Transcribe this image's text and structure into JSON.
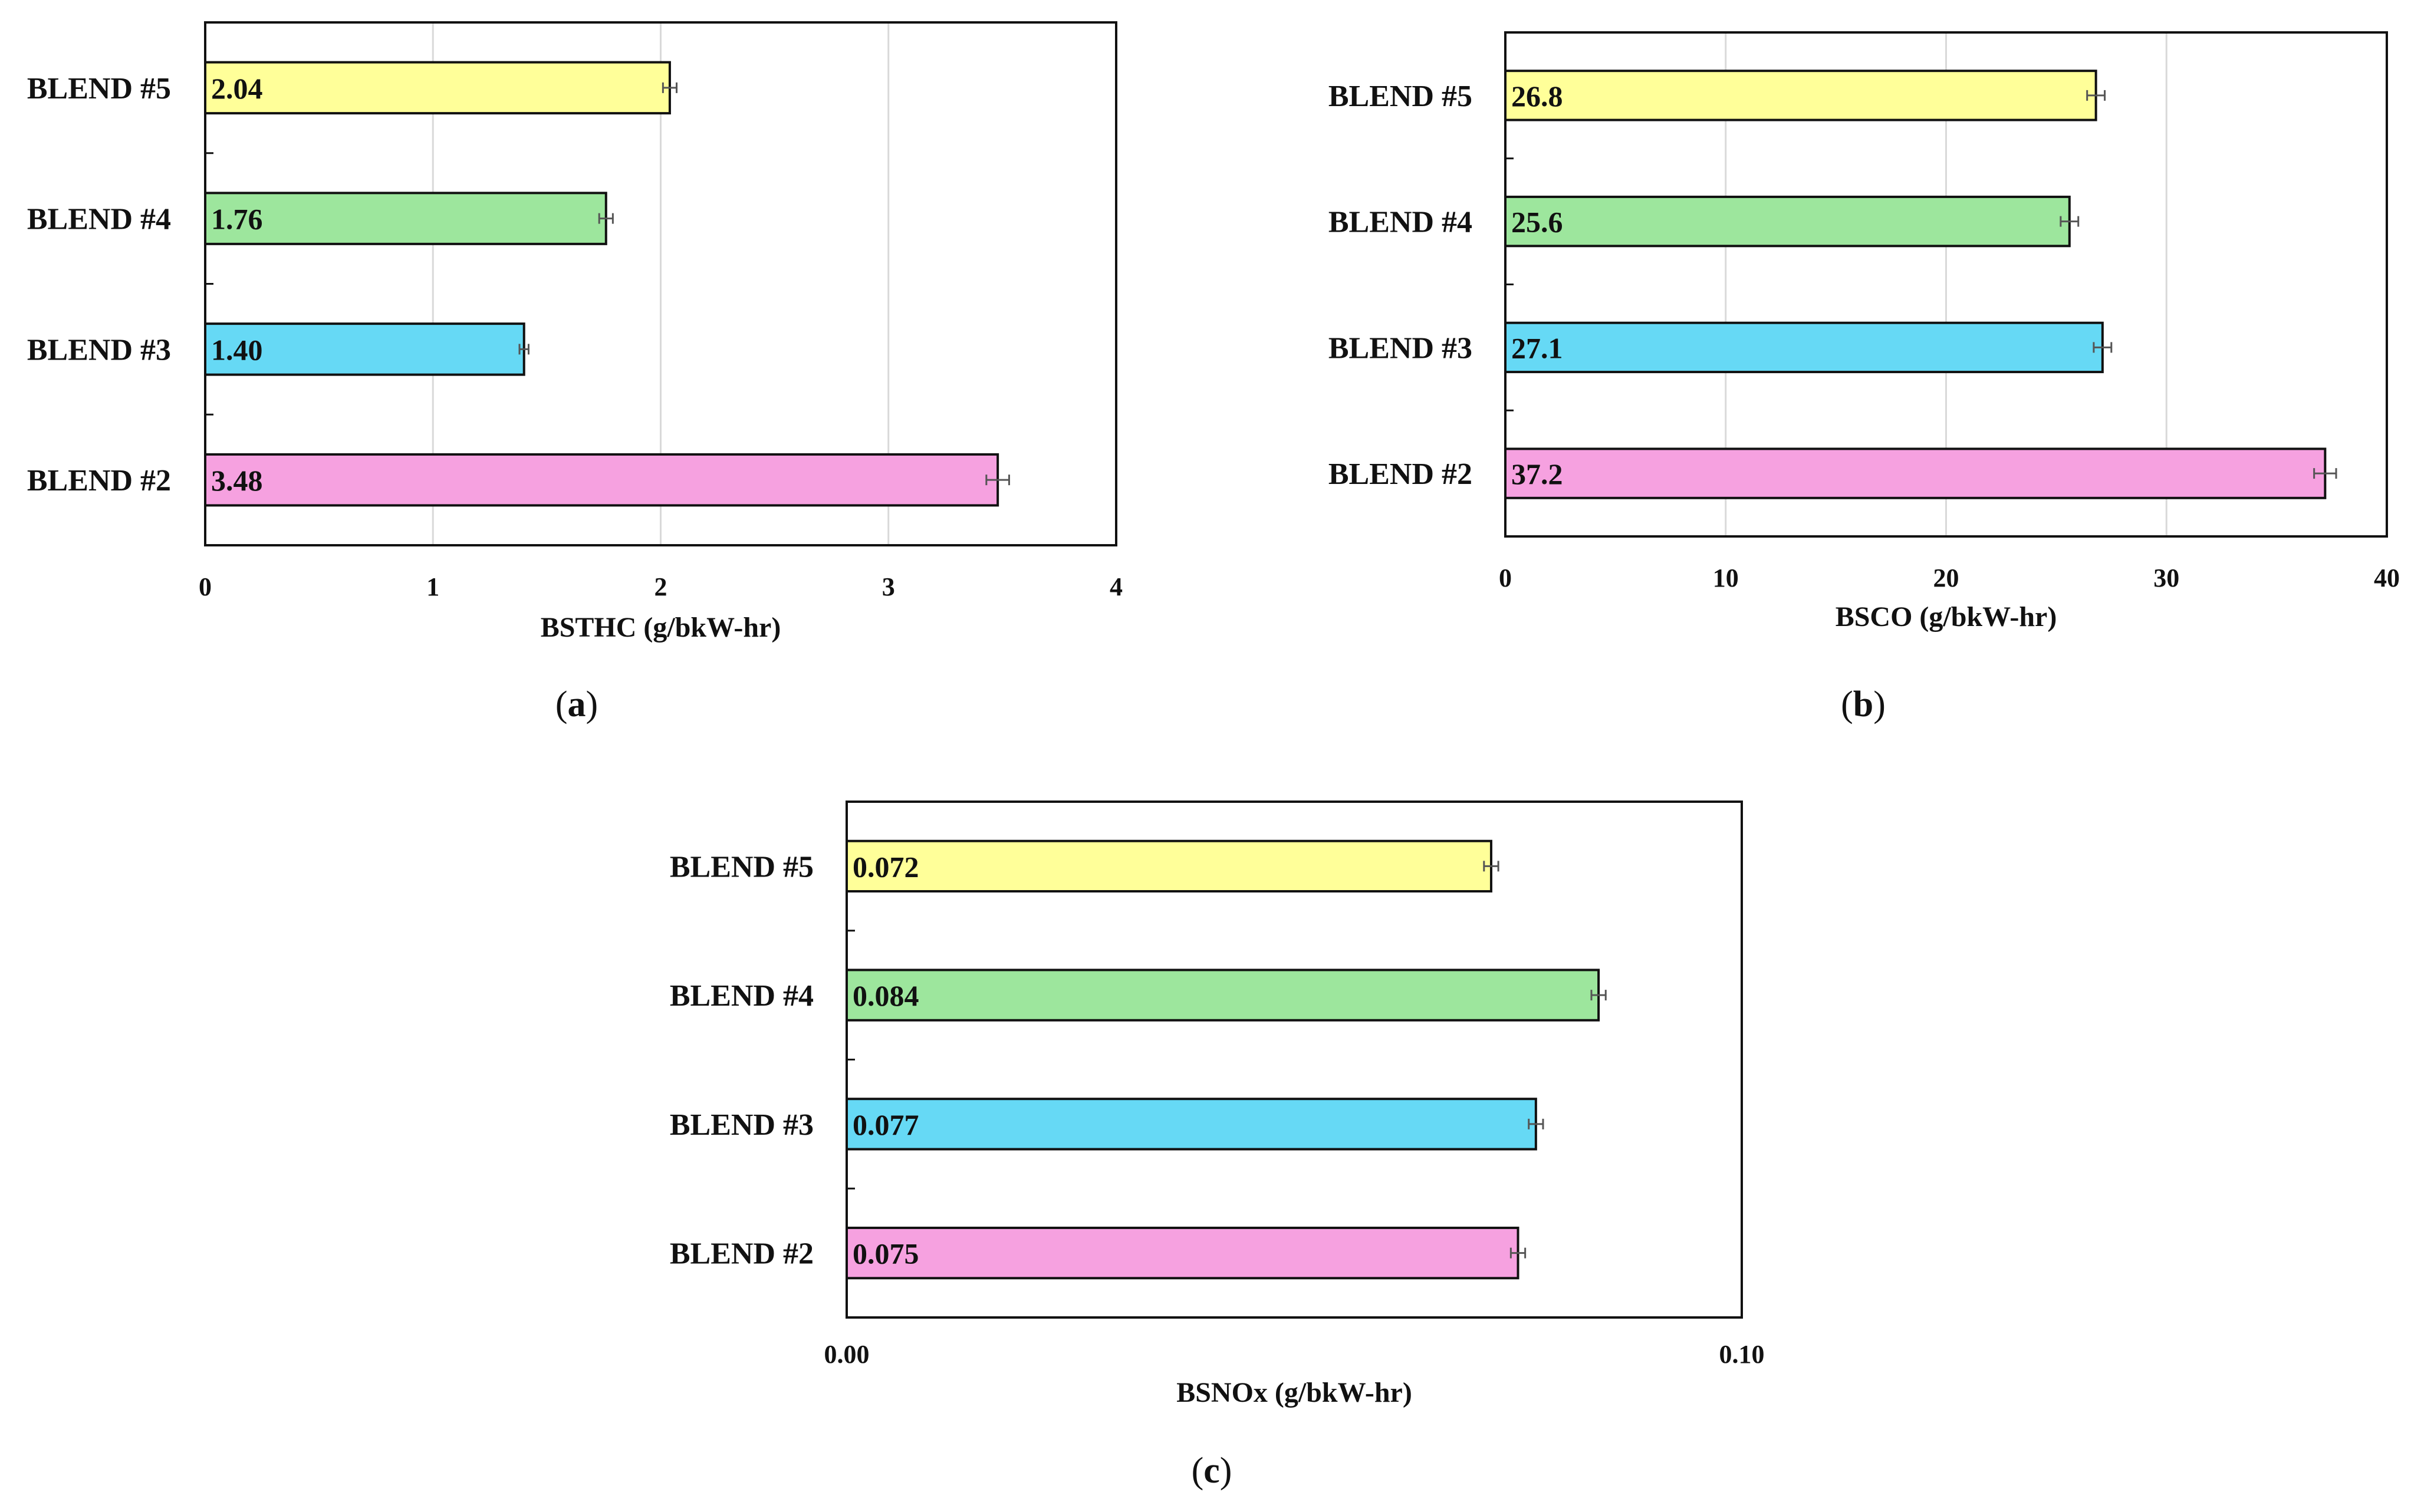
{
  "chart_data": [
    {
      "type": "bar",
      "orientation": "horizontal",
      "panel": "a",
      "categories": [
        "BLEND #5",
        "BLEND #4",
        "BLEND #3",
        "BLEND #2"
      ],
      "values": [
        2.04,
        1.76,
        1.4,
        3.48
      ],
      "value_labels": [
        "2.04",
        "1.76",
        "1.40",
        "3.48"
      ],
      "error": [
        0.03,
        0.03,
        0.02,
        0.05
      ],
      "colors": [
        "#ffff99",
        "#9de69d",
        "#66d9f5",
        "#f6a1e0"
      ],
      "xlim": [
        0,
        4
      ],
      "xticks": [
        0,
        1,
        2,
        3,
        4
      ],
      "xtick_labels": [
        "0",
        "1",
        "2",
        "3",
        "4"
      ],
      "xlabel": "BSTHC (g/bkW-hr)",
      "grid": true,
      "caption_open": "(",
      "caption_letter": "a",
      "caption_close": ")"
    },
    {
      "type": "bar",
      "orientation": "horizontal",
      "panel": "b",
      "categories": [
        "BLEND #5",
        "BLEND #4",
        "BLEND #3",
        "BLEND #2"
      ],
      "values": [
        26.8,
        25.6,
        27.1,
        37.2
      ],
      "value_labels": [
        "26.8",
        "25.6",
        "27.1",
        "37.2"
      ],
      "error": [
        0.4,
        0.4,
        0.4,
        0.5
      ],
      "colors": [
        "#ffff99",
        "#9de69d",
        "#66d9f5",
        "#f6a1e0"
      ],
      "xlim": [
        0,
        40
      ],
      "xticks": [
        0,
        10,
        20,
        30,
        40
      ],
      "xtick_labels": [
        "0",
        "10",
        "20",
        "30",
        "40"
      ],
      "xlabel": "BSCO (g/bkW-hr)",
      "grid": true,
      "caption_open": "(",
      "caption_letter": "b",
      "caption_close": ")"
    },
    {
      "type": "bar",
      "orientation": "horizontal",
      "panel": "c",
      "categories": [
        "BLEND #5",
        "BLEND #4",
        "BLEND #3",
        "BLEND #2"
      ],
      "values": [
        0.072,
        0.084,
        0.077,
        0.075
      ],
      "value_labels": [
        "0.072",
        "0.084",
        "0.077",
        "0.075"
      ],
      "error": [
        0.0008,
        0.0008,
        0.0008,
        0.0008
      ],
      "colors": [
        "#ffff99",
        "#9de69d",
        "#66d9f5",
        "#f6a1e0"
      ],
      "xlim": [
        0,
        0.1
      ],
      "xticks": [
        0,
        0.1
      ],
      "xtick_labels": [
        "0.00",
        "0.10"
      ],
      "xlabel": "BSNOx (g/bkW-hr)",
      "grid": false,
      "caption_open": "(",
      "caption_letter": "c",
      "caption_close": ")"
    }
  ]
}
